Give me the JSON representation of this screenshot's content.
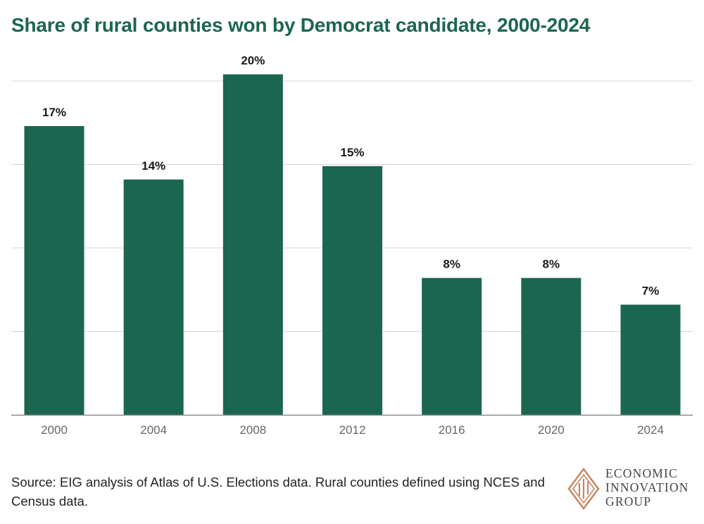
{
  "title": "Share of rural counties won by Democrat candidate, 2000-2024",
  "source": "Source: EIG analysis of Atlas of U.S. Elections data. Rural counties defined using NCES and Census data.",
  "logo": {
    "lines": [
      "ECONOMIC",
      "INNOVATION",
      "GROUP"
    ]
  },
  "colors": {
    "bar": "#1b6650",
    "title": "#1b6650",
    "grid": "#d4d4d4",
    "axis": "#8c8c8c",
    "logo_accent": "#c98563"
  },
  "chart_data": {
    "type": "bar",
    "title": "Share of rural counties won by Democrat candidate, 2000-2024",
    "xlabel": "",
    "ylabel": "",
    "categories": [
      "2000",
      "2004",
      "2008",
      "2012",
      "2016",
      "2020",
      "2024"
    ],
    "values": [
      17,
      14,
      20,
      15,
      8,
      8,
      7
    ],
    "value_labels": [
      "17%",
      "14%",
      "20%",
      "15%",
      "8%",
      "8%",
      "7%"
    ],
    "values_precise": [
      17.3,
      14.1,
      20.4,
      14.9,
      8.2,
      8.2,
      6.6
    ],
    "ylim": [
      0,
      20
    ],
    "grid": true,
    "y_tick_labels_shown": false,
    "legend": "none"
  }
}
